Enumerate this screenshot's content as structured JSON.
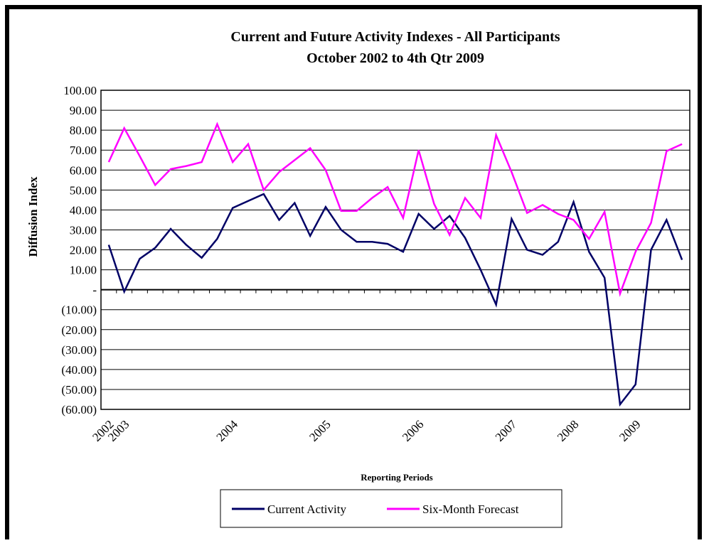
{
  "chart_data": {
    "type": "line",
    "title": "Current and Future Activity Indexes - All Participants",
    "subtitle": "October 2002 to 4th Qtr 2009",
    "y_label": "Diffusion Index",
    "x_label": "Reporting Periods",
    "categories": [
      "2002",
      "2003",
      null,
      null,
      null,
      null,
      null,
      null,
      "2004",
      null,
      null,
      null,
      null,
      null,
      "2005",
      null,
      null,
      null,
      null,
      null,
      "2006",
      null,
      null,
      null,
      null,
      null,
      "2007",
      null,
      null,
      null,
      "2008",
      null,
      null,
      null,
      "2009",
      null,
      null,
      null
    ],
    "series": [
      {
        "name": "Current Activity",
        "color": "#000066",
        "values": [
          22.5,
          -1,
          15.5,
          21,
          30.5,
          22.5,
          16,
          25.5,
          41,
          44.5,
          48,
          35,
          43.5,
          27,
          41.5,
          30,
          24,
          24,
          23,
          19,
          38,
          30.5,
          37,
          26,
          10,
          -7.5,
          35.5,
          20,
          17.5,
          24,
          44,
          19,
          6,
          -57.5,
          -47.5,
          20,
          35,
          15
        ]
      },
      {
        "name": "Six-Month Forecast",
        "color": "#ff00ff",
        "values": [
          64,
          81,
          67,
          52.5,
          60.5,
          62,
          64,
          83,
          64,
          73,
          50,
          59,
          65,
          71,
          60,
          39.5,
          39.5,
          46,
          51.5,
          36,
          70,
          43,
          27.5,
          46,
          36,
          77.5,
          59,
          38.5,
          42.5,
          38,
          35,
          25.5,
          39,
          -2,
          19,
          33.5,
          69.5,
          73
        ]
      }
    ],
    "ylim": [
      -60,
      100
    ],
    "yticks": [
      {
        "value": 100,
        "label": "100.00"
      },
      {
        "value": 90,
        "label": "90.00"
      },
      {
        "value": 80,
        "label": "80.00"
      },
      {
        "value": 70,
        "label": "70.00"
      },
      {
        "value": 60,
        "label": "60.00"
      },
      {
        "value": 50,
        "label": "50.00"
      },
      {
        "value": 40,
        "label": "40.00"
      },
      {
        "value": 30,
        "label": "30.00"
      },
      {
        "value": 20,
        "label": "20.00"
      },
      {
        "value": 10,
        "label": "10.00"
      },
      {
        "value": 0,
        "label": "-"
      },
      {
        "value": -10,
        "label": "(10.00)"
      },
      {
        "value": -20,
        "label": "(20.00)"
      },
      {
        "value": -30,
        "label": "(30.00)"
      },
      {
        "value": -40,
        "label": "(40.00)"
      },
      {
        "value": -50,
        "label": "(50.00)"
      },
      {
        "value": -60,
        "label": "(60.00)"
      }
    ],
    "grid": true
  }
}
